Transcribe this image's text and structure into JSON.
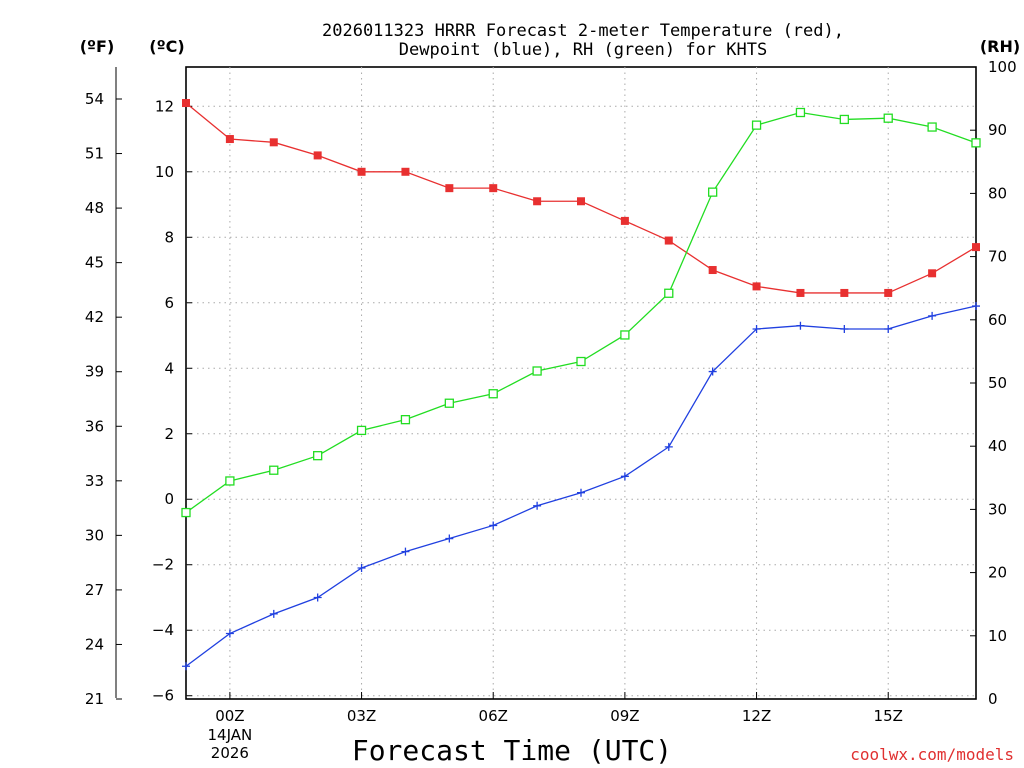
{
  "chart_data": {
    "type": "line",
    "title": [
      "2026011323 HRRR Forecast 2-meter Temperature (red),",
      "Dewpoint (blue), RH (green) for KHTS"
    ],
    "xlabel": "Forecast Time (UTC)",
    "unit_labels": {
      "f": "(ºF)",
      "c": "(ºC)",
      "rh": "(RH)"
    },
    "credit": "coolwx.com/models",
    "x": [
      -1,
      0,
      1,
      2,
      3,
      4,
      5,
      6,
      7,
      8,
      9,
      10,
      11,
      12,
      13,
      14,
      15,
      16,
      17
    ],
    "xlim": [
      -1,
      17
    ],
    "x_ticks": [
      {
        "x": 0,
        "label": "00Z",
        "sub": [
          "14JAN",
          "2026"
        ]
      },
      {
        "x": 3,
        "label": "03Z"
      },
      {
        "x": 6,
        "label": "06Z"
      },
      {
        "x": 9,
        "label": "09Z"
      },
      {
        "x": 12,
        "label": "12Z"
      },
      {
        "x": 15,
        "label": "15Z"
      }
    ],
    "ylim_c": [
      -6.1,
      13.2
    ],
    "ylim_rh": [
      0,
      100
    ],
    "ylim_f": [
      21,
      55.76
    ],
    "y_ticks_c": [
      "-6",
      "-4",
      "-2",
      "0",
      "2",
      "4",
      "6",
      "8",
      "10",
      "12"
    ],
    "y_ticks_f": [
      "21",
      "24",
      "27",
      "30",
      "33",
      "36",
      "39",
      "42",
      "45",
      "48",
      "51",
      "54"
    ],
    "y_ticks_rh": [
      "0",
      "10",
      "20",
      "30",
      "40",
      "50",
      "60",
      "70",
      "80",
      "90",
      "100"
    ],
    "series": [
      {
        "name": "Temperature",
        "axis": "c",
        "color": "#e83030",
        "marker": "filled-square",
        "values": [
          12.1,
          11.0,
          10.9,
          10.5,
          10.0,
          10.0,
          9.5,
          9.5,
          9.1,
          9.1,
          8.5,
          7.9,
          7.0,
          6.5,
          6.3,
          6.3,
          6.3,
          6.9,
          7.7
        ]
      },
      {
        "name": "Dewpoint",
        "axis": "c",
        "color": "#2040e0",
        "marker": "plus",
        "values": [
          -5.1,
          -4.1,
          -3.5,
          -3.0,
          -2.1,
          -1.6,
          -1.2,
          -0.8,
          -0.2,
          0.2,
          0.7,
          1.6,
          3.9,
          5.2,
          5.3,
          5.2,
          5.2,
          5.6,
          5.9
        ]
      },
      {
        "name": "RH",
        "axis": "rh",
        "color": "#22dd22",
        "marker": "open-square",
        "values": [
          29.5,
          34.5,
          36.2,
          38.5,
          42.5,
          44.2,
          46.8,
          48.3,
          51.9,
          53.4,
          57.6,
          64.2,
          80.2,
          90.8,
          92.8,
          91.7,
          91.9,
          90.5,
          88.0
        ]
      }
    ]
  }
}
